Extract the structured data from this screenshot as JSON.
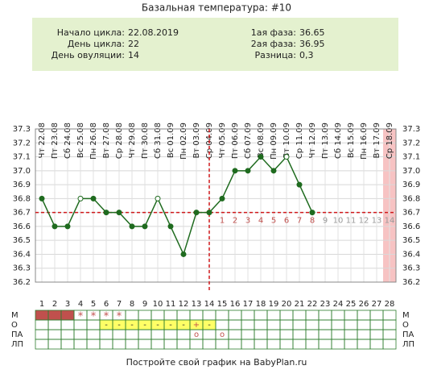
{
  "chart_data": {
    "type": "line",
    "title": "Базальная температура: #10",
    "info_left": [
      {
        "label": "Начало цикла:",
        "value": "22.08.2019"
      },
      {
        "label": "День цикла:",
        "value": "22"
      },
      {
        "label": "День овуляции:",
        "value": "14"
      }
    ],
    "info_right": [
      {
        "label": "1ая фаза:",
        "value": "36.65"
      },
      {
        "label": "2ая фаза:",
        "value": "36.95"
      },
      {
        "label": "Разница:",
        "value": "0,3"
      }
    ],
    "x": [
      1,
      2,
      3,
      4,
      5,
      6,
      7,
      8,
      9,
      10,
      11,
      12,
      13,
      14,
      15,
      16,
      17,
      18,
      19,
      20,
      21,
      22,
      23,
      24,
      25,
      26,
      27,
      28
    ],
    "dates": [
      "Чт 22.08",
      "Пт 23.08",
      "Сб 24.08",
      "Вс 25.08",
      "Пн 26.08",
      "Вт 27.08",
      "Ср 28.08",
      "Чт 29.08",
      "Пт 30.08",
      "Сб 31.08",
      "Вс 01.09",
      "Пн 02.09",
      "Вт 03.09",
      "Ср 04.09",
      "Чт 05.09",
      "Пт 06.09",
      "Сб 07.09",
      "Вс 08.09",
      "Пн 09.09",
      "Вт 10.09",
      "Ср 11.09",
      "Чт 12.09",
      "Пт 13.09",
      "Сб 14.09",
      "Вс 15.09",
      "Пн 16.09",
      "Вт 17.09",
      "Ср 18.09"
    ],
    "series": [
      {
        "color": "#1f6b1f",
        "values": [
          36.8,
          36.6,
          36.6,
          36.8,
          36.8,
          36.7,
          36.7,
          36.6,
          36.6,
          36.8,
          36.6,
          36.4,
          36.7,
          36.7,
          36.8,
          37.0,
          37.0,
          37.1,
          37.0,
          37.1,
          36.9,
          36.7,
          null,
          null,
          null,
          null,
          null,
          null
        ],
        "open_marker_days": [
          4,
          10,
          20
        ]
      }
    ],
    "ylim": [
      36.2,
      37.3
    ],
    "yticks": [
      36.2,
      36.3,
      36.4,
      36.5,
      36.6,
      36.7,
      36.8,
      36.9,
      {
        "value": 37,
        "label": "37.0"
      },
      37.1,
      37.2,
      37.3
    ],
    "coverline": 36.7,
    "ovulation_day": 14,
    "reference_color": "#d0191b",
    "shaded_day": 28,
    "luteal_labels": [
      1,
      2,
      3,
      4,
      5,
      6,
      7,
      8,
      9,
      10,
      11,
      12,
      13,
      14
    ],
    "rows": [
      {
        "label": "М",
        "fill_color": "#c0504d",
        "filled_days": [
          1,
          2,
          3
        ],
        "symbols": [
          null,
          null,
          null,
          "*",
          "*",
          "*",
          "*",
          null,
          null,
          null,
          null,
          null,
          null,
          null,
          null,
          null,
          null,
          null,
          null,
          null,
          null,
          null,
          null,
          null,
          null,
          null,
          null,
          null
        ]
      },
      {
        "label": "О",
        "fill_color": "#ffff66",
        "filled_days": [
          6,
          7,
          8,
          9,
          10,
          11,
          12,
          13,
          14
        ],
        "symbols": [
          null,
          null,
          null,
          null,
          null,
          "-",
          "-",
          "-",
          "-",
          "-",
          "-",
          "-",
          "+",
          "-",
          null,
          null,
          null,
          null,
          null,
          null,
          null,
          null,
          null,
          null,
          null,
          null,
          null,
          null
        ]
      },
      {
        "label": "ПА",
        "fill_color": "#ffff66",
        "filled_days": [],
        "symbols": [
          null,
          null,
          null,
          null,
          null,
          null,
          null,
          null,
          null,
          null,
          null,
          null,
          "o",
          null,
          "o",
          null,
          null,
          null,
          null,
          null,
          null,
          null,
          null,
          null,
          null,
          null,
          null,
          null
        ]
      },
      {
        "label": "ЛП",
        "fill_color": "#ffff66",
        "filled_days": [],
        "symbols": [
          null,
          null,
          null,
          null,
          null,
          null,
          null,
          null,
          null,
          null,
          null,
          null,
          null,
          null,
          null,
          null,
          null,
          null,
          null,
          null,
          null,
          null,
          null,
          null,
          null,
          null,
          null,
          null
        ]
      }
    ],
    "footer": "Постройте свой график на BabyPlan.ru"
  }
}
